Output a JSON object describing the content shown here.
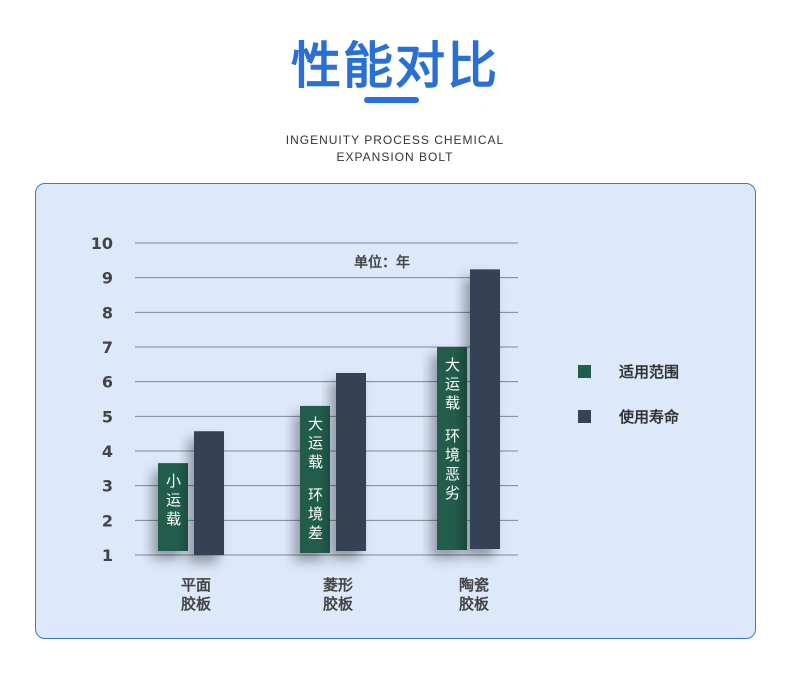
{
  "header": {
    "title": "性能对比",
    "subtitle_line1": "INGENUITY PROCESS CHEMICAL",
    "subtitle_line2": "EXPANSION BOLT"
  },
  "colors": {
    "title": "#2a6fd6",
    "panel_bg": "#dde9fb",
    "panel_border": "#3a78c9"
  },
  "chart_data": {
    "type": "bar",
    "unit_label": "单位：年",
    "categories": [
      "平面\n胶板",
      "菱形\n胶板",
      "陶瓷\n胶板"
    ],
    "category_lines": [
      [
        "平面",
        "胶板"
      ],
      [
        "菱形",
        "胶板"
      ],
      [
        "陶瓷",
        "胶板"
      ]
    ],
    "ylim": [
      1,
      10
    ],
    "yticks": [
      "1",
      "2",
      "3",
      "4",
      "5",
      "6",
      "7",
      "8",
      "9",
      "10"
    ],
    "grid": true,
    "legend_position": "right",
    "series": [
      {
        "name": "适用范围",
        "color": "#215c4c",
        "values": [
          3.65,
          5.3,
          7.0
        ],
        "annotations": [
          [
            "小运载"
          ],
          [
            "大运载",
            "环境差"
          ],
          [
            "大运载",
            "环境恶劣"
          ]
        ]
      },
      {
        "name": "使用寿命",
        "color": "#364256",
        "values": [
          4.57,
          6.25,
          9.24
        ]
      }
    ]
  }
}
